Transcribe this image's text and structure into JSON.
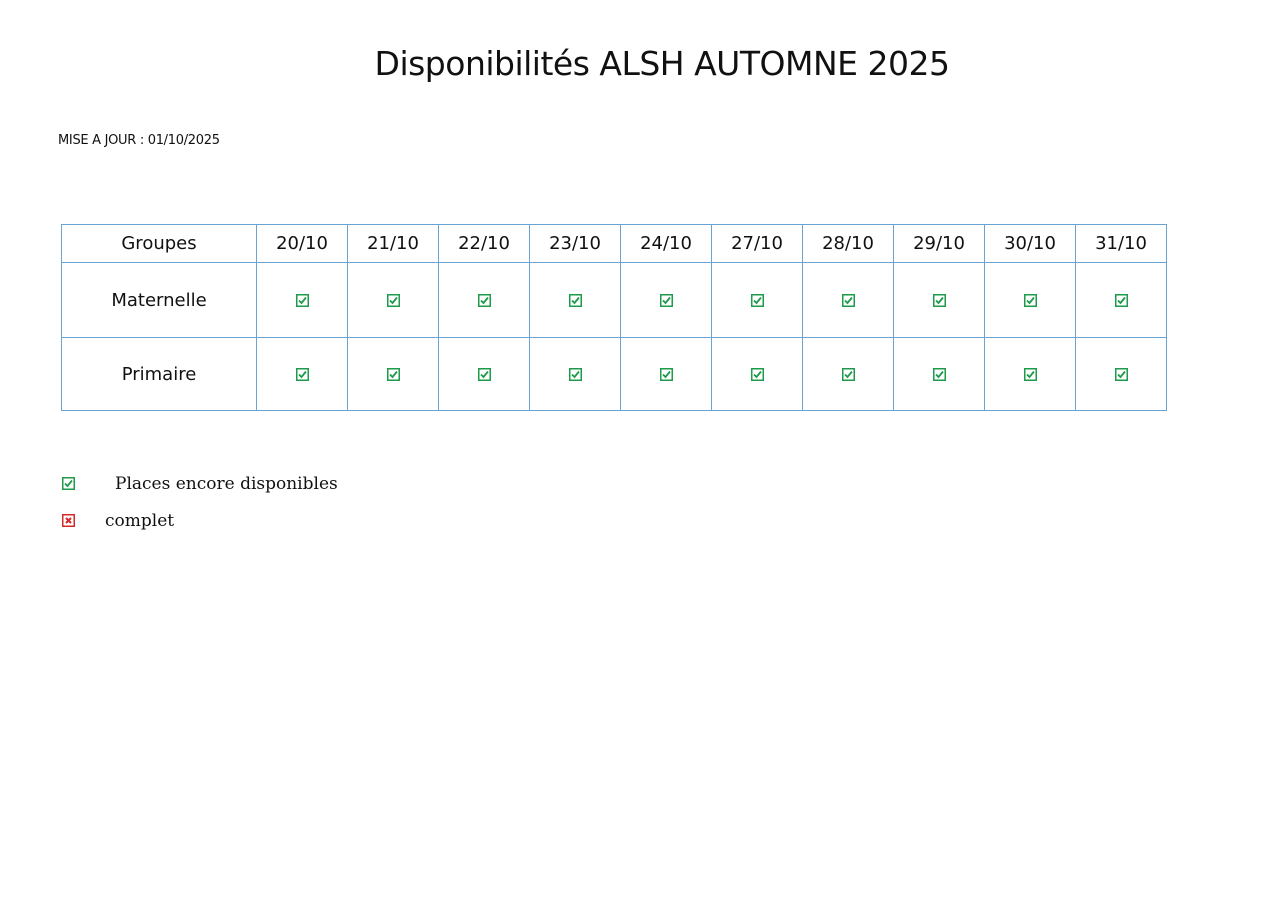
{
  "title": "Disponibilités ALSH AUTOMNE 2025",
  "update": "MISE A JOUR : 01/10/2025",
  "colors": {
    "available": "#1e9a4b",
    "full": "#d62828",
    "border": "#6aa2d0"
  },
  "table": {
    "header": "Groupes",
    "dates": [
      "20/10",
      "21/10",
      "22/10",
      "23/10",
      "24/10",
      "27/10",
      "28/10",
      "29/10",
      "30/10",
      "31/10"
    ],
    "rows": [
      {
        "group": "Maternelle",
        "status": [
          "available",
          "available",
          "available",
          "available",
          "available",
          "available",
          "available",
          "available",
          "available",
          "available"
        ]
      },
      {
        "group": "Primaire",
        "status": [
          "available",
          "available",
          "available",
          "available",
          "available",
          "available",
          "available",
          "available",
          "available",
          "available"
        ]
      }
    ]
  },
  "legend": [
    {
      "icon": "checked-box-icon",
      "label": "Places encore disponibles"
    },
    {
      "icon": "crossed-box-icon",
      "label": "complet"
    }
  ]
}
